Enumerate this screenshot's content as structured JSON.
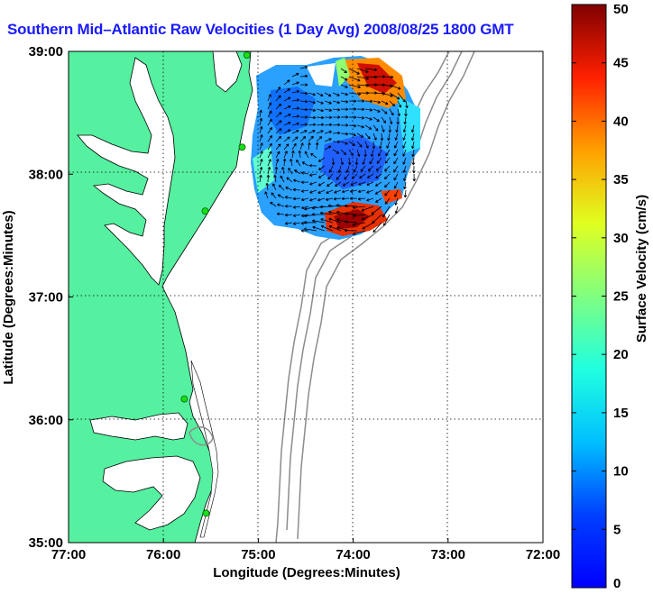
{
  "title": "Southern Mid–Atlantic Raw Velocities (1 Day Avg) 2008/08/25 1800 GMT",
  "map": {
    "xlabel": "Longitude (Degrees:Minutes)",
    "ylabel": "Latitude (Degrees:Minutes)",
    "x_ticks": [
      "77:00",
      "76:00",
      "75:00",
      "74:00",
      "73:00",
      "72:00"
    ],
    "y_ticks": [
      "39:00",
      "38:00",
      "37:00",
      "36:00",
      "35:00"
    ],
    "lon_range": [
      -77,
      -72
    ],
    "lat_range": [
      35,
      39
    ],
    "grid": true,
    "land_color": "#55f0a0",
    "contour_color": "#8c8c8c",
    "station_color": "#18e018"
  },
  "colorbar": {
    "label": "Surface Velocity (cm/s)",
    "ticks": [
      "0",
      "5",
      "10",
      "15",
      "20",
      "25",
      "30",
      "35",
      "40",
      "45",
      "50"
    ],
    "range": [
      0,
      50
    ],
    "colormap": "jet"
  },
  "stations": [
    {
      "lon": -75.12,
      "lat": 38.97
    },
    {
      "lon": -75.17,
      "lat": 38.22
    },
    {
      "lon": -75.56,
      "lat": 37.7
    },
    {
      "lon": -75.78,
      "lat": 36.17
    },
    {
      "lon": -75.55,
      "lat": 35.24
    }
  ]
}
